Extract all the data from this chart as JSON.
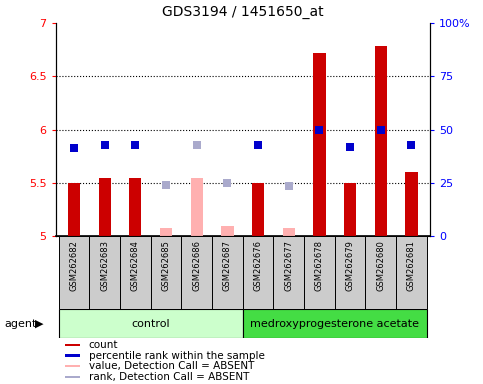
{
  "title": "GDS3194 / 1451650_at",
  "samples": [
    "GSM262682",
    "GSM262683",
    "GSM262684",
    "GSM262685",
    "GSM262686",
    "GSM262687",
    "GSM262676",
    "GSM262677",
    "GSM262678",
    "GSM262679",
    "GSM262680",
    "GSM262681"
  ],
  "absent": [
    false,
    false,
    false,
    true,
    true,
    true,
    false,
    true,
    false,
    false,
    false,
    false
  ],
  "bar_values": [
    5.5,
    5.55,
    5.55,
    5.08,
    5.55,
    5.1,
    5.5,
    5.08,
    6.72,
    5.5,
    6.78,
    5.6
  ],
  "dot_values": [
    5.83,
    5.86,
    5.86,
    5.48,
    5.86,
    5.5,
    5.86,
    5.47,
    6.0,
    5.84,
    6.0,
    5.86
  ],
  "ylim_left": [
    5.0,
    7.0
  ],
  "ylim_right": [
    0,
    100
  ],
  "yticks_left": [
    5.0,
    5.5,
    6.0,
    6.5,
    7.0
  ],
  "yticks_right": [
    0,
    25,
    50,
    75,
    100
  ],
  "ytick_labels_left": [
    "5",
    "5.5",
    "6",
    "6.5",
    "7"
  ],
  "ytick_labels_right": [
    "0",
    "25",
    "50",
    "75",
    "100%"
  ],
  "hlines": [
    5.5,
    6.0,
    6.5
  ],
  "bar_color_present": "#cc0000",
  "bar_color_absent": "#ffb0b0",
  "dot_color_present": "#0000cc",
  "dot_color_absent": "#aaaacc",
  "ctrl_color": "#ccffcc",
  "medr_color": "#44dd44",
  "group_labels": [
    "control",
    "medroxyprogesterone acetate"
  ],
  "ctrl_count": 6,
  "medr_count": 6,
  "agent_label": "agent",
  "legend_items": [
    {
      "label": "count",
      "color": "#cc0000"
    },
    {
      "label": "percentile rank within the sample",
      "color": "#0000cc"
    },
    {
      "label": "value, Detection Call = ABSENT",
      "color": "#ffb0b0"
    },
    {
      "label": "rank, Detection Call = ABSENT",
      "color": "#aaaacc"
    }
  ],
  "bar_width": 0.4,
  "dot_size": 40,
  "sample_box_color": "#cccccc",
  "plot_bg": "#ffffff"
}
